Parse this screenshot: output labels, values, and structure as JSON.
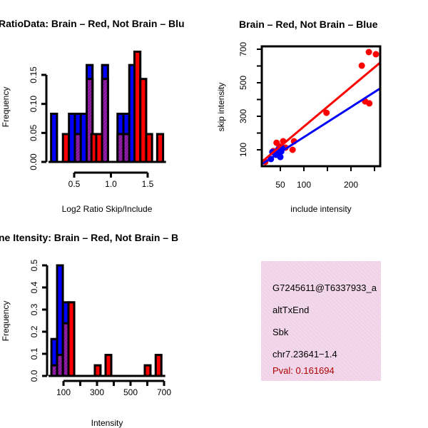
{
  "colors": {
    "blue": "#0000ff",
    "red": "#ff0000",
    "overlap": "#8b1a9b",
    "pval": "#b00000"
  },
  "chart_data": [
    {
      "type": "bar",
      "title": "RatioData: Brain – Red, Not Brain – Blu",
      "xlabel": "Log2 Ratio Skip/Include",
      "ylabel": "Frequency",
      "xticks": [
        "0.5",
        "1.0",
        "1.5"
      ],
      "xtick_values": [
        0.5,
        1.0,
        1.5
      ],
      "yticks": [
        "0.00",
        "0.05",
        "0.10",
        "0.15"
      ],
      "ytick_values": [
        0,
        0.05,
        0.1,
        0.15
      ],
      "xlim": [
        0.19,
        1.71
      ],
      "ylim": [
        0,
        0.19
      ],
      "bin_width": 0.08,
      "series_names": [
        "Brain (red)",
        "Not Brain (blue)"
      ],
      "bins": [
        {
          "x": 0.186,
          "blue": 0.083,
          "red": 0
        },
        {
          "x": 0.347,
          "blue": 0,
          "red": 0.048
        },
        {
          "x": 0.429,
          "blue": 0.083,
          "red": 0
        },
        {
          "x": 0.51,
          "blue": 0.083,
          "red": 0.048
        },
        {
          "x": 0.59,
          "blue": 0.083,
          "red": 0
        },
        {
          "x": 0.67,
          "blue": 0.167,
          "red": 0.143
        },
        {
          "x": 0.735,
          "blue": 0,
          "red": 0.048
        },
        {
          "x": 0.8,
          "blue": 0,
          "red": 0.048
        },
        {
          "x": 0.88,
          "blue": 0.167,
          "red": 0.143
        },
        {
          "x": 1.09,
          "blue": 0.083,
          "red": 0.048
        },
        {
          "x": 1.17,
          "blue": 0.083,
          "red": 0.048
        },
        {
          "x": 1.25,
          "blue": 0.167,
          "red": 0
        },
        {
          "x": 1.32,
          "blue": 0,
          "red": 0.19
        },
        {
          "x": 1.4,
          "blue": 0,
          "red": 0.143
        },
        {
          "x": 1.48,
          "blue": 0,
          "red": 0.048
        },
        {
          "x": 1.63,
          "blue": 0,
          "red": 0.048
        }
      ]
    },
    {
      "type": "scatter",
      "title": "Brain – Red, Not Brain – Blue",
      "xlabel": "include intensity",
      "ylabel": "skip intensity",
      "xticks": [
        "50",
        "100",
        "200"
      ],
      "xtick_values": [
        50,
        100,
        200
      ],
      "xminor": [
        150,
        250
      ],
      "yticks": [
        "100",
        "300",
        "500",
        "700"
      ],
      "ytick_values": [
        100,
        300,
        500,
        700
      ],
      "yminor": [
        200,
        400,
        600
      ],
      "xlim": [
        10.6,
        262
      ],
      "ylim": [
        2,
        717
      ],
      "red_points": [
        [
          223,
          602
        ],
        [
          238,
          683
        ],
        [
          253,
          670
        ],
        [
          230,
          389
        ],
        [
          239,
          377
        ],
        [
          148,
          321
        ],
        [
          42,
          142
        ],
        [
          56,
          151
        ],
        [
          61,
          113
        ],
        [
          76,
          100
        ],
        [
          79,
          151
        ],
        [
          35,
          92
        ],
        [
          18,
          28
        ],
        [
          48,
          120
        ]
      ],
      "blue_points": [
        [
          33,
          87
        ],
        [
          50,
          57
        ],
        [
          45,
          100
        ],
        [
          53,
          113
        ],
        [
          41,
          70
        ],
        [
          30,
          45
        ],
        [
          38,
          80
        ],
        [
          52,
          90
        ]
      ],
      "red_fit": {
        "slope": 2.355,
        "intercept": 3
      },
      "blue_fit": {
        "slope": 1.794,
        "intercept": -4
      }
    },
    {
      "type": "bar",
      "title": "ne Itensity: Brain – Red, Not Brain – B",
      "xlabel": "Intensity",
      "ylabel": "Frequency",
      "xticks": [
        "100",
        "300",
        "500",
        "700"
      ],
      "xtick_values": [
        100,
        300,
        500,
        700
      ],
      "xminor": [
        200,
        400,
        600
      ],
      "yticks": [
        "0.0",
        "0.1",
        "0.2",
        "0.3",
        "0.4",
        "0.5"
      ],
      "ytick_values": [
        0,
        0.1,
        0.2,
        0.3,
        0.4,
        0.5
      ],
      "xlim": [
        28,
        690
      ],
      "ylim": [
        0,
        0.5
      ],
      "bin_width": 34,
      "bins": [
        {
          "x": 28,
          "blue": 0.167,
          "red": 0.048
        },
        {
          "x": 62,
          "blue": 0.5,
          "red": 0.095
        },
        {
          "x": 97,
          "blue": 0.333,
          "red": 0.238
        },
        {
          "x": 130,
          "blue": 0,
          "red": 0.333
        },
        {
          "x": 287,
          "blue": 0,
          "red": 0.048
        },
        {
          "x": 351,
          "blue": 0,
          "red": 0.095
        },
        {
          "x": 585,
          "blue": 0,
          "red": 0.048
        },
        {
          "x": 650,
          "blue": 0,
          "red": 0.095
        }
      ]
    }
  ],
  "info": {
    "id": "G7245611@T6337933_a",
    "event": "altTxEnd",
    "gene": "Sbk",
    "location": "chr7.23641−1.4",
    "pval": "Pval: 0.161694"
  }
}
